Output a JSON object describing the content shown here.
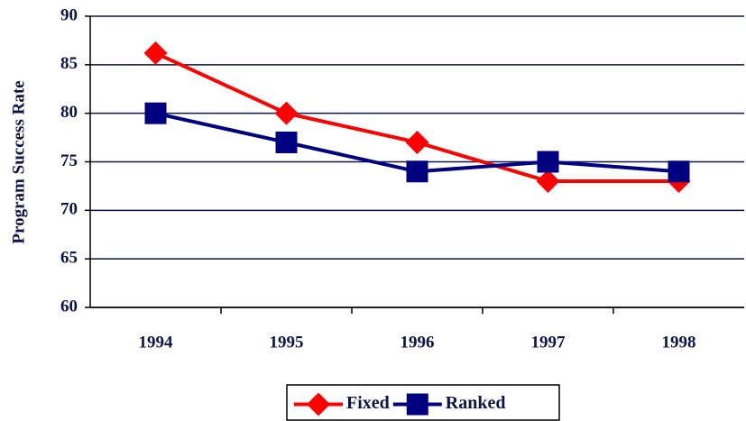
{
  "chart_data": {
    "type": "line",
    "y_label": "Program Success Rate",
    "categories": [
      "1994",
      "1995",
      "1996",
      "1997",
      "1998"
    ],
    "series": [
      {
        "name": "Fixed",
        "color": "#ff0000",
        "marker": "diamond",
        "values": [
          86.2,
          80,
          77,
          73,
          73
        ]
      },
      {
        "name": "Ranked",
        "color": "#000080",
        "marker": "square",
        "values": [
          80,
          77,
          74,
          75,
          74
        ]
      }
    ],
    "ylim": [
      60,
      90
    ],
    "yticks": [
      60,
      65,
      70,
      75,
      80,
      85,
      90
    ],
    "grid": true,
    "legend": "bottom"
  }
}
